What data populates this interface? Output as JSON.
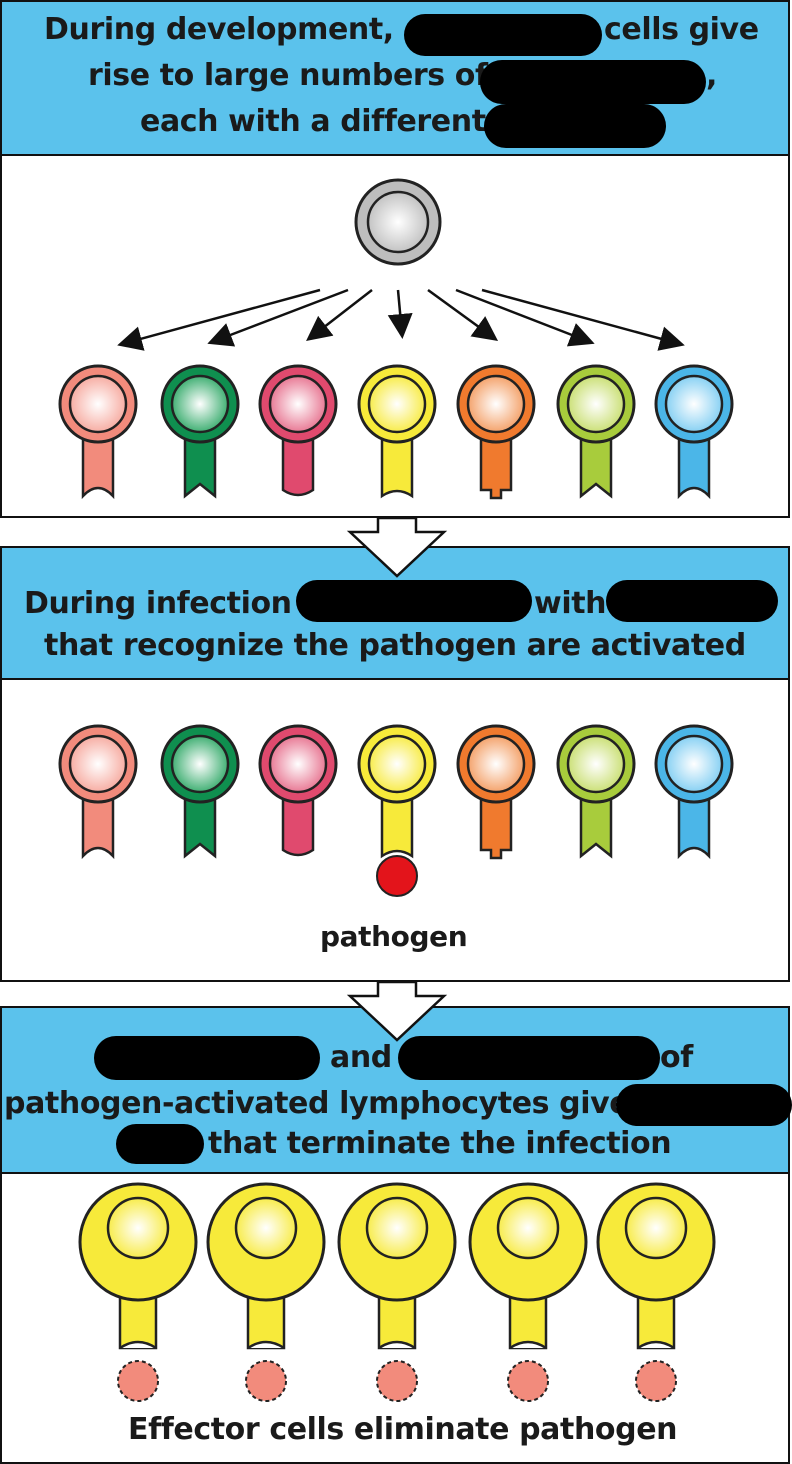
{
  "panel1": {
    "line1_a": "During development,",
    "line1_b": "cells give",
    "line2_a": "rise to large numbers of",
    "line2_b": ",",
    "line3_a": "each with a different"
  },
  "panel2": {
    "line1_a": "During infection",
    "line1_b": "with",
    "line2": "that recognize the pathogen are activated",
    "pathogen_label": "pathogen"
  },
  "panel3": {
    "line1_b": "and",
    "line1_c": "of",
    "line2_a": "pathogen-activated lymphocytes give",
    "line3_b": "that terminate the infection",
    "footer": "Effector cells eliminate pathogen"
  },
  "colors": {
    "band": "#5bc2ec",
    "salmon": "#f28b7c",
    "green": "#0f8f4f",
    "crimson": "#e04a6e",
    "yellow": "#f7ea3a",
    "orange": "#f07a2e",
    "lime": "#a8cc3c",
    "sky": "#4bb6e8",
    "pathogen": "#e3141b",
    "stem_cell": "#bdbdbd"
  }
}
